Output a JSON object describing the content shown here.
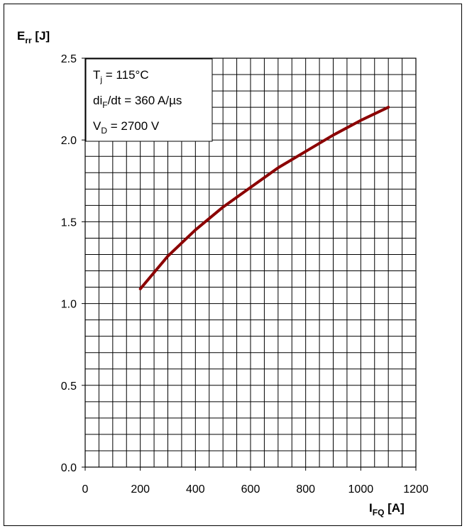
{
  "chart_data": {
    "type": "line",
    "title": "",
    "ylabel": {
      "main": "E",
      "sub": "rr",
      "unit": " [J]"
    },
    "xlabel": {
      "main": "I",
      "sub": "FQ",
      "unit": " [A]"
    },
    "xlim": [
      0,
      1200
    ],
    "ylim": [
      0.0,
      2.5
    ],
    "x_ticks": [
      0,
      200,
      400,
      600,
      800,
      1000,
      1200
    ],
    "y_ticks": [
      0.0,
      0.5,
      1.0,
      1.5,
      2.0,
      2.5
    ],
    "x_tick_labels": [
      "0",
      "200",
      "400",
      "600",
      "800",
      "1000",
      "1200"
    ],
    "y_tick_labels": [
      "0.0",
      "0.5",
      "1.0",
      "1.5",
      "2.0",
      "2.5"
    ],
    "minor_x_step": 50,
    "minor_y_step": 0.1,
    "grid": true,
    "series": [
      {
        "color": "#8b0000",
        "x": [
          200,
          300,
          400,
          500,
          600,
          700,
          800,
          900,
          1000,
          1100
        ],
        "y": [
          1.09,
          1.29,
          1.45,
          1.59,
          1.71,
          1.83,
          1.93,
          2.03,
          2.12,
          2.2
        ]
      }
    ],
    "conditions_box": {
      "position": "top-left",
      "lines": [
        {
          "main": "T",
          "sub": "j",
          "rest": " = 115°C"
        },
        {
          "main": "di",
          "sub": "F",
          "rest": "/dt = 360 A/µs"
        },
        {
          "main": "V",
          "sub": "D",
          "rest": " = 2700 V"
        }
      ]
    }
  }
}
